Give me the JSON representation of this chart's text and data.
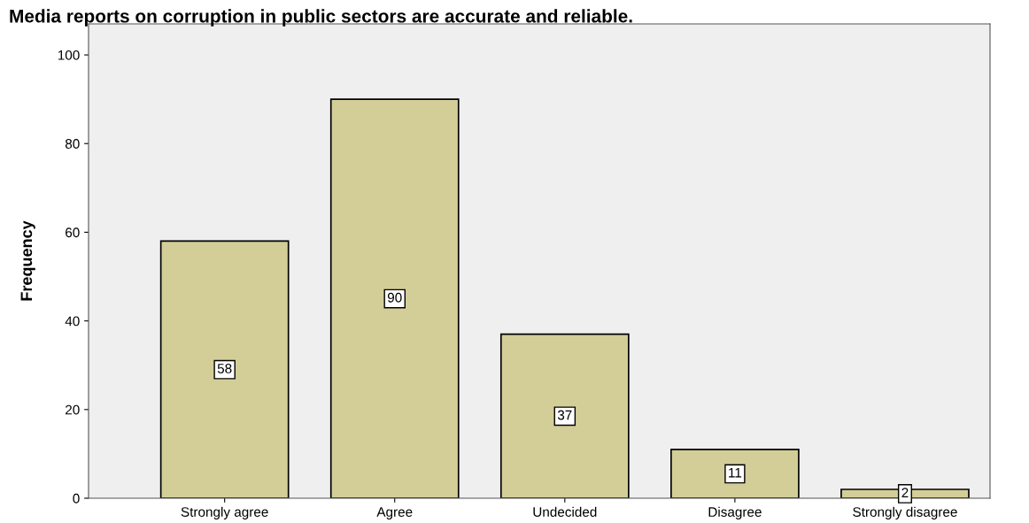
{
  "chart_data": {
    "type": "bar",
    "title": "Media reports on corruption in public sectors are accurate and reliable.",
    "ylabel": "Frequency",
    "categories": [
      "Strongly agree",
      "Agree",
      "Undecided",
      "Disagree",
      "Strongly disagree"
    ],
    "values": [
      58,
      90,
      37,
      11,
      2
    ],
    "color": "#d3ce97",
    "ylim": [
      0,
      107
    ],
    "yticks": [
      0,
      20,
      40,
      60,
      80,
      100
    ],
    "data_labels": true,
    "grid": false,
    "legend": false
  }
}
